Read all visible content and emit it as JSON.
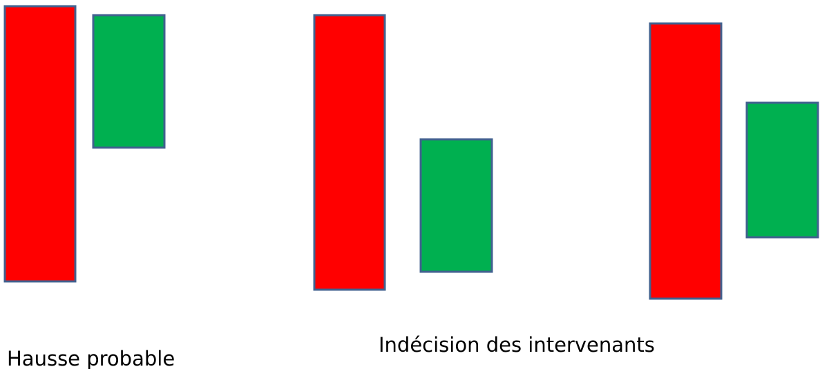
{
  "labels": {
    "left": "Hausse probable",
    "right": "Indécision des intervenants"
  }
}
